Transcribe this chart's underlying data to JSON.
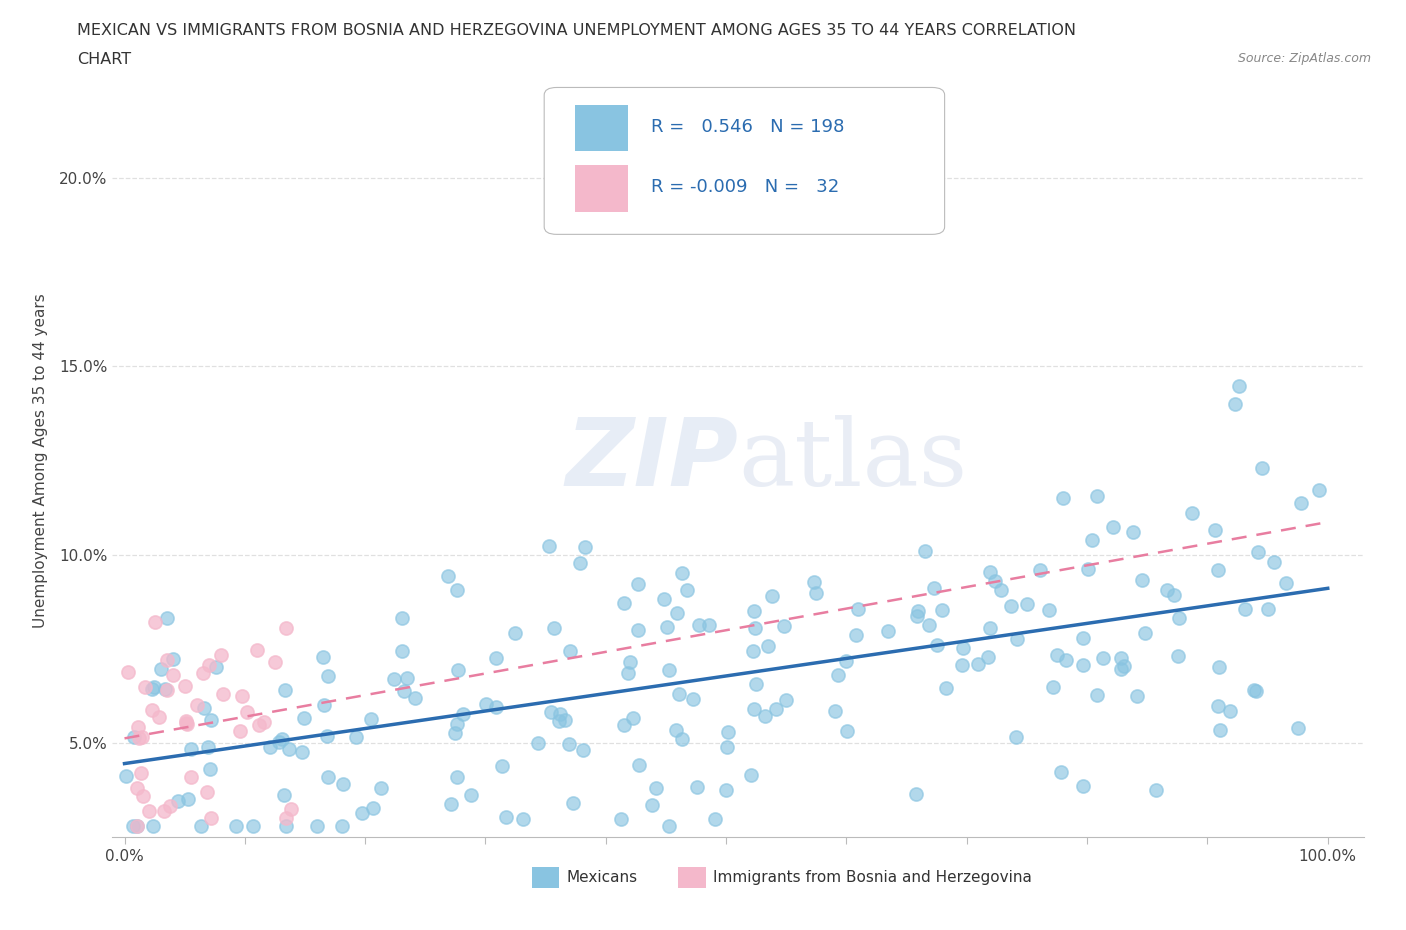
{
  "title_line1": "MEXICAN VS IMMIGRANTS FROM BOSNIA AND HERZEGOVINA UNEMPLOYMENT AMONG AGES 35 TO 44 YEARS CORRELATION",
  "title_line2": "CHART",
  "source": "Source: ZipAtlas.com",
  "ylabel": "Unemployment Among Ages 35 to 44 years",
  "xlim": [
    -0.01,
    1.03
  ],
  "ylim": [
    0.025,
    0.225
  ],
  "xticks": [
    0.0,
    0.1,
    0.2,
    0.3,
    0.4,
    0.5,
    0.6,
    0.7,
    0.8,
    0.9,
    1.0
  ],
  "xticklabels": [
    "0.0%",
    "",
    "",
    "",
    "",
    "",
    "",
    "",
    "",
    "",
    "100.0%"
  ],
  "yticks": [
    0.05,
    0.1,
    0.15,
    0.2
  ],
  "yticklabels": [
    "5.0%",
    "10.0%",
    "15.0%",
    "20.0%"
  ],
  "mexicans_color": "#89c4e1",
  "bosnia_color": "#f4b8cb",
  "mexicans_R": 0.546,
  "mexicans_N": 198,
  "bosnia_R": -0.009,
  "bosnia_N": 32,
  "mexicans_line_color": "#2b6cb0",
  "bosnia_line_color": "#e87da0",
  "watermark_zip": "ZIP",
  "watermark_atlas": "atlas",
  "legend_label_mexicans": "Mexicans",
  "legend_label_bosnia": "Immigrants from Bosnia and Herzegovina",
  "background_color": "#ffffff",
  "grid_color": "#e0e0e0"
}
